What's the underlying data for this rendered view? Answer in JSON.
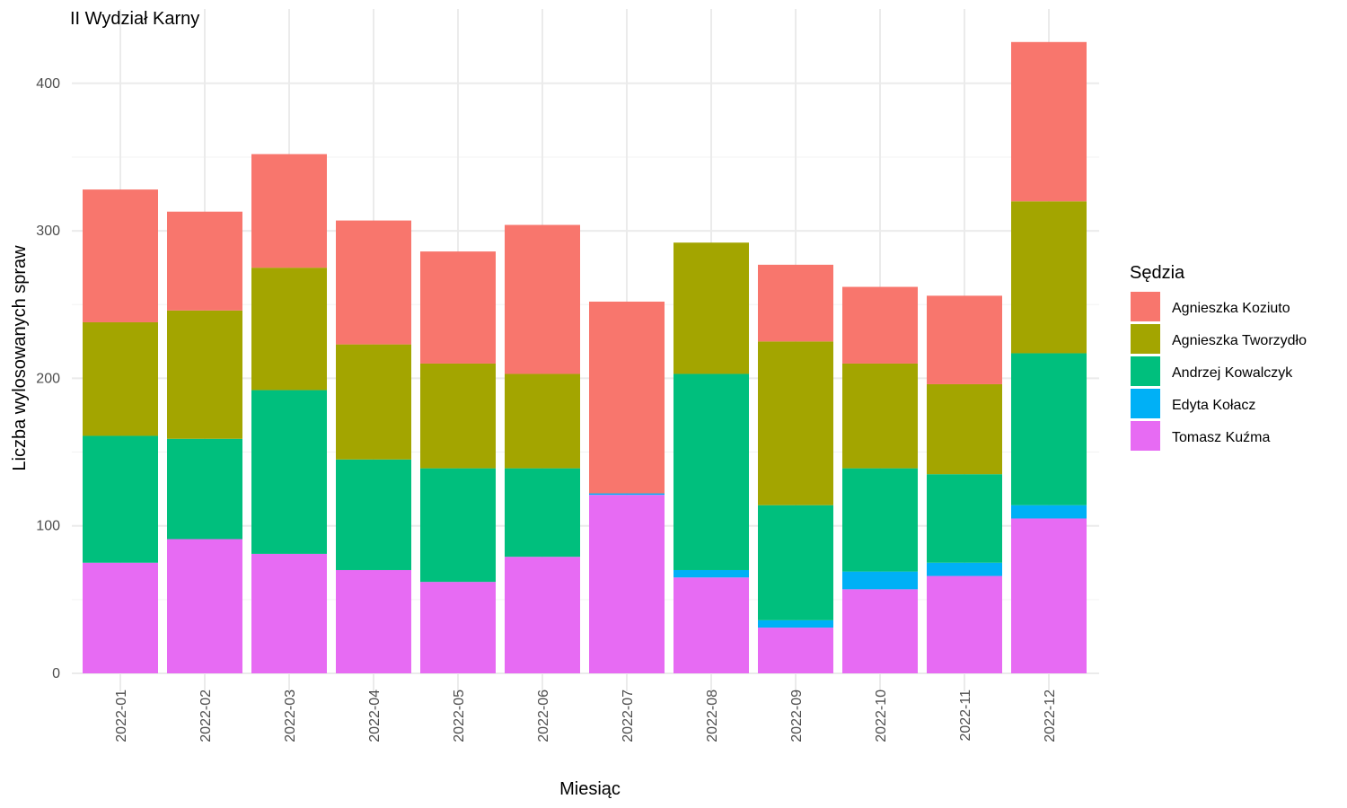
{
  "chart_data": {
    "type": "bar",
    "stacked": true,
    "title": "II Wydział Karny",
    "xlabel": "Miesiąc",
    "ylabel": "Liczba wylosowanych spraw",
    "ylim": [
      0,
      440
    ],
    "yticks": [
      0,
      100,
      200,
      300,
      400
    ],
    "grid": true,
    "legend_title": "Sędzia",
    "legend_position": "right",
    "categories": [
      "2022-01",
      "2022-02",
      "2022-03",
      "2022-04",
      "2022-05",
      "2022-06",
      "2022-07",
      "2022-08",
      "2022-09",
      "2022-10",
      "2022-11",
      "2022-12"
    ],
    "series": [
      {
        "name": "Tomasz Kuźma",
        "color": "#E76BF3",
        "values": [
          75,
          91,
          81,
          70,
          62,
          79,
          121,
          65,
          31,
          57,
          66,
          105
        ]
      },
      {
        "name": "Edyta Kołacz",
        "color": "#00B0F6",
        "values": [
          0,
          0,
          0,
          0,
          0,
          0,
          1,
          5,
          5,
          12,
          9,
          9
        ]
      },
      {
        "name": "Andrzej Kowalczyk",
        "color": "#00BF7D",
        "values": [
          86,
          68,
          111,
          75,
          77,
          60,
          0,
          133,
          78,
          70,
          60,
          103
        ]
      },
      {
        "name": "Agnieszka Tworzydło",
        "color": "#A3A500",
        "values": [
          77,
          87,
          83,
          78,
          71,
          64,
          0,
          89,
          111,
          71,
          61,
          103
        ]
      },
      {
        "name": "Agnieszka Koziuto",
        "color": "#F8766D",
        "values": [
          90,
          67,
          77,
          84,
          76,
          101,
          130,
          0,
          52,
          52,
          60,
          108
        ]
      }
    ],
    "legend_order": [
      "Agnieszka Koziuto",
      "Agnieszka Tworzydło",
      "Andrzej Kowalczyk",
      "Edyta Kołacz",
      "Tomasz Kuźma"
    ]
  }
}
